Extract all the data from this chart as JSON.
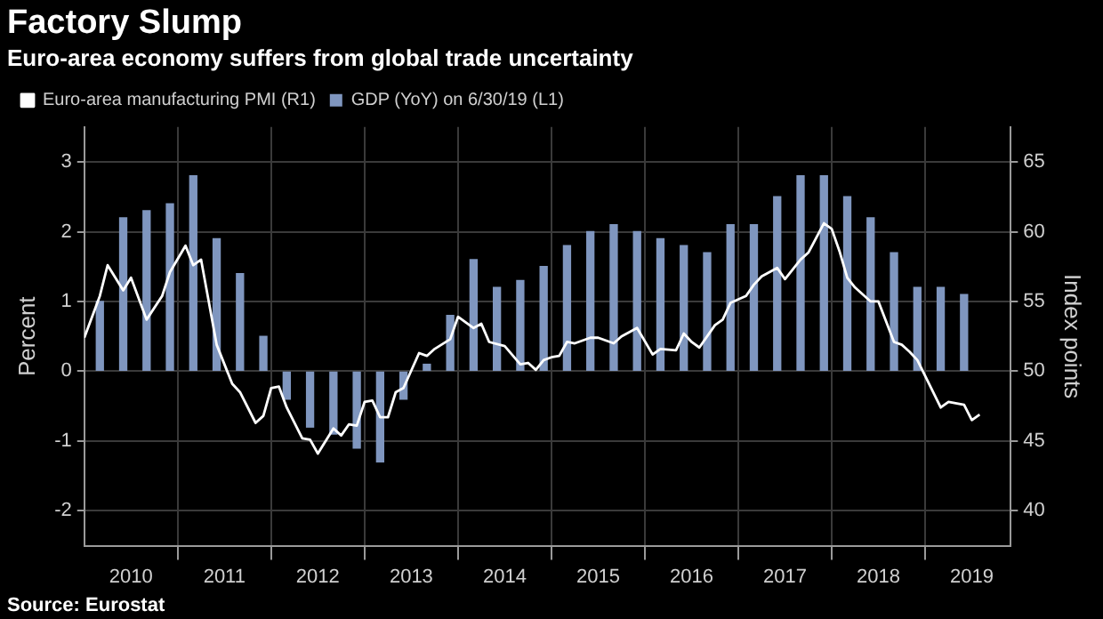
{
  "chart_data": {
    "type": "bar",
    "title": "Factory Slump",
    "subtitle": "Euro-area economy suffers from global trade uncertainty",
    "ylabel": "Percent",
    "y2label": "Index points",
    "annotations": [
      "Source: Eurostat"
    ],
    "legend": "top left",
    "grid": true,
    "xlim": [
      "2010-01",
      "2019-12"
    ],
    "xticks": [
      {
        "value": "2010-07",
        "label": "2010"
      },
      {
        "value": "2011",
        "label": null
      },
      {
        "value": "2011-07",
        "label": "2011"
      },
      {
        "value": "2012",
        "label": null
      },
      {
        "value": "2012-07",
        "label": "2012"
      },
      {
        "value": "2013",
        "label": null
      },
      {
        "value": "2013-07",
        "label": "2013"
      },
      {
        "value": "2014",
        "label": null
      },
      {
        "value": "2014-07",
        "label": "2014"
      },
      {
        "value": "2015",
        "label": null
      },
      {
        "value": "2015-07",
        "label": "2015"
      },
      {
        "value": "2016",
        "label": null
      },
      {
        "value": "2016-07",
        "label": "2016"
      },
      {
        "value": "2017",
        "label": null
      },
      {
        "value": "2017-07",
        "label": "2017"
      },
      {
        "value": "2018",
        "label": null
      },
      {
        "value": "2018-07",
        "label": "2018"
      },
      {
        "value": "2019",
        "label": null
      },
      {
        "value": "2019-07",
        "label": "2019"
      }
    ],
    "ylim": [
      -2.5,
      3.5
    ],
    "yticks": [
      -2,
      -1,
      0,
      1,
      2,
      3
    ],
    "y2lim": [
      37.5,
      67.5
    ],
    "y2ticks": [
      40,
      45,
      50,
      55,
      60,
      65
    ],
    "series": [
      {
        "name": "Euro-area manufacturing PMI (R1)",
        "type": "line",
        "axis": "y2",
        "color": "#ffffff",
        "x": [
          "2010-01",
          "2010-03",
          "2010-04",
          "2010-06",
          "2010-07",
          "2010-09",
          "2010-11",
          "2010-12",
          "2011-02",
          "2011-03",
          "2011-04",
          "2011-06",
          "2011-08",
          "2011-09",
          "2011-11",
          "2011-12",
          "2012-01",
          "2012-02",
          "2012-03",
          "2012-05",
          "2012-06",
          "2012-07",
          "2012-09",
          "2012-10",
          "2012-11",
          "2012-12",
          "2013-01",
          "2013-02",
          "2013-03",
          "2013-04",
          "2013-05",
          "2013-06",
          "2013-08",
          "2013-09",
          "2013-10",
          "2013-12",
          "2014-01",
          "2014-03",
          "2014-04",
          "2014-05",
          "2014-07",
          "2014-09",
          "2014-10",
          "2014-11",
          "2014-12",
          "2015-01",
          "2015-02",
          "2015-03",
          "2015-04",
          "2015-06",
          "2015-07",
          "2015-09",
          "2015-10",
          "2015-12",
          "2016-02",
          "2016-03",
          "2016-05",
          "2016-06",
          "2016-07",
          "2016-08",
          "2016-10",
          "2016-11",
          "2016-12",
          "2017-02",
          "2017-03",
          "2017-04",
          "2017-06",
          "2017-07",
          "2017-09",
          "2017-10",
          "2017-12",
          "2018-01",
          "2018-02",
          "2018-03",
          "2018-04",
          "2018-06",
          "2018-07",
          "2018-09",
          "2018-10",
          "2018-11",
          "2018-12",
          "2019-03",
          "2019-04",
          "2019-06",
          "2019-07",
          "2019-08"
        ],
        "values": [
          52.4,
          55.4,
          57.6,
          55.8,
          56.7,
          53.7,
          55.4,
          57.1,
          59.0,
          57.6,
          58.0,
          51.9,
          49.1,
          48.5,
          46.3,
          46.8,
          48.8,
          48.9,
          47.4,
          45.2,
          45.1,
          44.1,
          45.9,
          45.4,
          46.2,
          46.1,
          47.8,
          47.9,
          46.7,
          46.7,
          48.5,
          48.8,
          51.3,
          51.1,
          51.6,
          52.3,
          53.9,
          53.1,
          53.4,
          52.1,
          51.8,
          50.5,
          50.6,
          50.1,
          50.8,
          51.0,
          51.1,
          52.1,
          52.0,
          52.4,
          52.4,
          52.0,
          52.5,
          53.1,
          51.2,
          51.6,
          51.5,
          52.7,
          52.1,
          51.7,
          53.3,
          53.7,
          54.9,
          55.4,
          56.2,
          56.8,
          57.4,
          56.6,
          58.0,
          58.5,
          60.6,
          60.2,
          58.6,
          56.7,
          56.0,
          55.0,
          55.0,
          52.1,
          51.9,
          51.4,
          50.8,
          47.4,
          47.8,
          47.6,
          46.5,
          46.9
        ]
      },
      {
        "name": "GDP (YoY) on 6/30/19 (L1)",
        "color": "#7f96bf",
        "x": [
          "2010-03",
          "2010-06",
          "2010-09",
          "2010-12",
          "2011-03",
          "2011-06",
          "2011-09",
          "2011-12",
          "2012-03",
          "2012-06",
          "2012-09",
          "2012-12",
          "2013-03",
          "2013-06",
          "2013-09",
          "2013-12",
          "2014-03",
          "2014-06",
          "2014-09",
          "2014-12",
          "2015-03",
          "2015-06",
          "2015-09",
          "2015-12",
          "2016-03",
          "2016-06",
          "2016-09",
          "2016-12",
          "2017-03",
          "2017-06",
          "2017-09",
          "2017-12",
          "2018-03",
          "2018-06",
          "2018-09",
          "2018-12",
          "2019-03",
          "2019-06"
        ],
        "values": [
          1.0,
          2.2,
          2.3,
          2.4,
          2.8,
          1.9,
          1.4,
          0.5,
          -0.4,
          -0.8,
          -0.9,
          -1.1,
          -1.3,
          -0.4,
          0.1,
          0.8,
          1.6,
          1.2,
          1.3,
          1.5,
          1.8,
          2.0,
          2.1,
          2.0,
          1.9,
          1.8,
          1.7,
          2.1,
          2.1,
          2.5,
          2.8,
          2.8,
          2.5,
          2.2,
          1.7,
          1.2,
          1.2,
          1.1
        ]
      }
    ]
  }
}
